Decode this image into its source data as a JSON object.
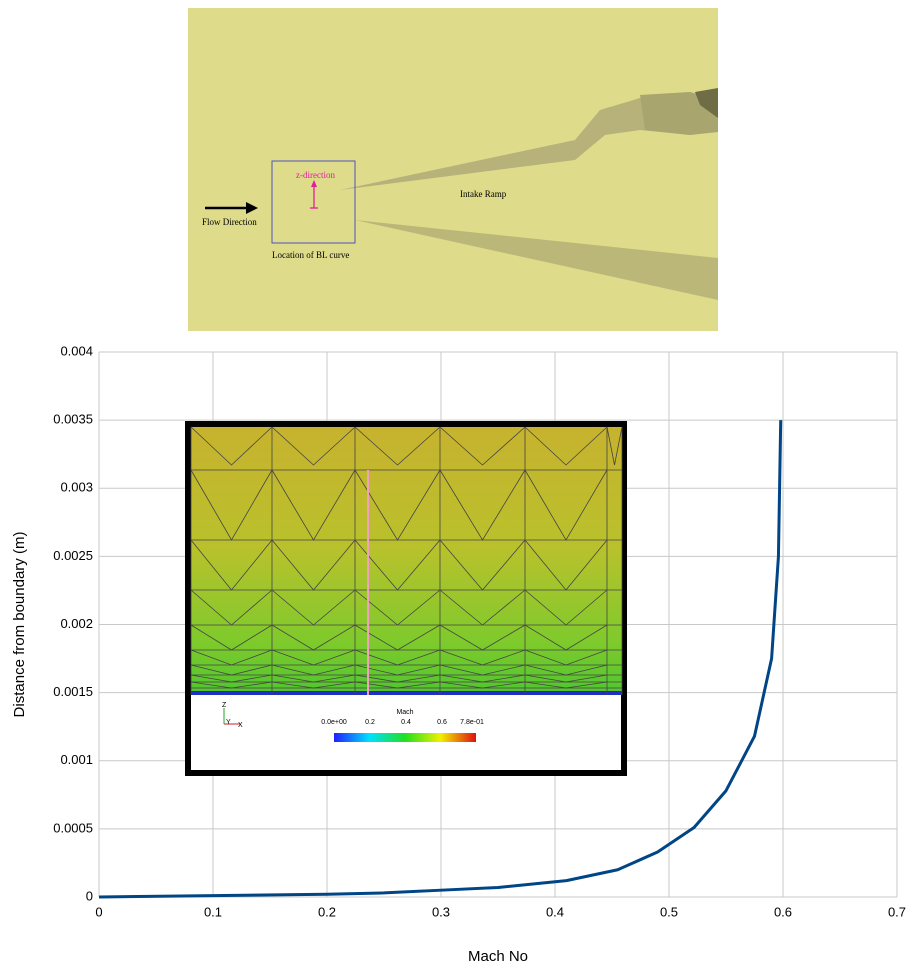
{
  "diagram": {
    "flow_label": "Flow Direction",
    "z_label": "z-direction",
    "ramp_label": "Intake Ramp",
    "bl_label": "Location of BL curve"
  },
  "inset": {
    "colorbar_title": "Mach",
    "colorbar_labels": [
      "0.0e+00",
      "0.2",
      "0.4",
      "0.6",
      "7.8e-01"
    ],
    "axis_labels": [
      "Z",
      "Y",
      "X"
    ]
  },
  "chart_data": {
    "type": "line",
    "x_label": "Mach No",
    "y_label": "Distance from boundary (m)",
    "x": [
      0,
      0.1,
      0.2,
      0.25,
      0.3,
      0.35,
      0.41,
      0.455,
      0.49,
      0.522,
      0.55,
      0.575,
      0.59,
      0.596,
      0.598
    ],
    "values": [
      0,
      1e-05,
      2e-05,
      3e-05,
      5e-05,
      7e-05,
      0.00012,
      0.0002,
      0.00033,
      0.00051,
      0.00078,
      0.00118,
      0.00175,
      0.0025,
      0.0035
    ],
    "color": "#004586",
    "xlim": [
      0,
      0.7
    ],
    "ylim": [
      0,
      0.004
    ],
    "xticks": [
      0,
      0.1,
      0.2,
      0.3,
      0.4,
      0.5,
      0.6,
      0.7
    ],
    "yticks": [
      0,
      0.0005,
      0.001,
      0.0015,
      0.002,
      0.0025,
      0.003,
      0.0035,
      0.004
    ],
    "grid": true
  }
}
